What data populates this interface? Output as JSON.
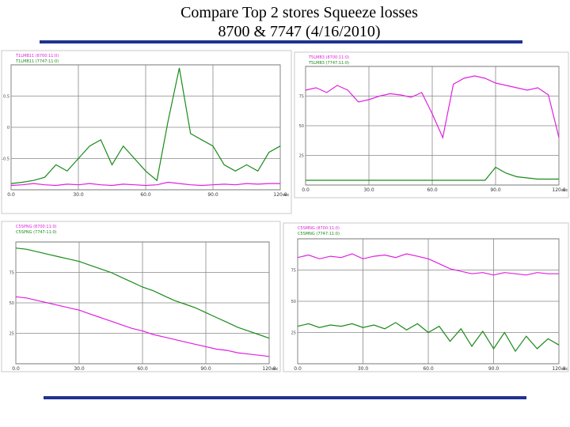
{
  "title": "Compare Top 2 stores Squeeze losses",
  "subtitle": "8700  & 7747 (4/16/2010)",
  "chart_data": [
    {
      "type": "line",
      "x_label": "sec",
      "x": [
        0,
        5,
        10,
        15,
        20,
        25,
        30,
        35,
        40,
        45,
        50,
        55,
        60,
        65,
        70,
        75,
        80,
        85,
        90,
        95,
        100,
        105,
        110,
        115,
        120
      ],
      "xlim": [
        0,
        120
      ],
      "xticks": [
        {
          "value": 0,
          "label": "0.0"
        },
        {
          "value": 30,
          "label": "30.0"
        },
        {
          "value": 60,
          "label": "60.0"
        },
        {
          "value": 90,
          "label": "90.0"
        },
        {
          "value": 120,
          "label": "120.0"
        }
      ],
      "ylim": [
        -1,
        1
      ],
      "yticks": [
        -0.5,
        0,
        0.5
      ],
      "grid": true,
      "series": [
        {
          "name": "T1LMB11 (8700:11:0)",
          "color": "#e020e0",
          "values": [
            -0.93,
            -0.92,
            -0.9,
            -0.92,
            -0.93,
            -0.91,
            -0.92,
            -0.9,
            -0.92,
            -0.93,
            -0.91,
            -0.92,
            -0.93,
            -0.92,
            -0.88,
            -0.9,
            -0.92,
            -0.93,
            -0.92,
            -0.91,
            -0.92,
            -0.9,
            -0.91,
            -0.9,
            -0.9
          ]
        },
        {
          "name": "T1LMB11 (7747:11:0)",
          "color": "#1a8a1a",
          "values": [
            -0.9,
            -0.88,
            -0.85,
            -0.8,
            -0.6,
            -0.7,
            -0.5,
            -0.3,
            -0.2,
            -0.6,
            -0.3,
            -0.5,
            -0.7,
            -0.85,
            0.1,
            0.95,
            -0.1,
            -0.2,
            -0.3,
            -0.6,
            -0.7,
            -0.6,
            -0.7,
            -0.4,
            -0.3
          ]
        }
      ]
    },
    {
      "type": "line",
      "x_label": "sec",
      "x": [
        0,
        5,
        10,
        15,
        20,
        25,
        30,
        35,
        40,
        45,
        50,
        55,
        60,
        65,
        70,
        75,
        80,
        85,
        90,
        95,
        100,
        105,
        110,
        115,
        120
      ],
      "xlim": [
        0,
        120
      ],
      "xticks": [
        {
          "value": 0,
          "label": "0.0"
        },
        {
          "value": 30,
          "label": "30.0"
        },
        {
          "value": 60,
          "label": "60.0"
        },
        {
          "value": 90,
          "label": "90.0"
        },
        {
          "value": 120,
          "label": "120.0"
        }
      ],
      "ylim": [
        0,
        100
      ],
      "yticks": [
        25,
        50,
        75
      ],
      "grid": true,
      "series": [
        {
          "name": "T5LMB3 (8700:11:0)",
          "color": "#e020e0",
          "values": [
            80,
            82,
            78,
            84,
            80,
            70,
            72,
            75,
            77,
            76,
            74,
            78,
            60,
            40,
            85,
            90,
            92,
            90,
            86,
            84,
            82,
            80,
            82,
            76,
            40
          ]
        },
        {
          "name": "T5LMB3 (7747:11:0)",
          "color": "#1a8a1a",
          "values": [
            4,
            4,
            4,
            4,
            4,
            4,
            4,
            4,
            4,
            4,
            4,
            4,
            4,
            4,
            4,
            4,
            4,
            4,
            15,
            10,
            7,
            6,
            5,
            5,
            5
          ]
        }
      ]
    },
    {
      "type": "line",
      "x_label": "sec",
      "x": [
        0,
        5,
        10,
        15,
        20,
        25,
        30,
        35,
        40,
        45,
        50,
        55,
        60,
        65,
        70,
        75,
        80,
        85,
        90,
        95,
        100,
        105,
        110,
        115,
        120
      ],
      "xlim": [
        0,
        120
      ],
      "xticks": [
        {
          "value": 0,
          "label": "0.0"
        },
        {
          "value": 30,
          "label": "30.0"
        },
        {
          "value": 60,
          "label": "60.0"
        },
        {
          "value": 90,
          "label": "90.0"
        },
        {
          "value": 120,
          "label": "120.0"
        }
      ],
      "ylim": [
        0,
        100
      ],
      "yticks": [
        25,
        50,
        75
      ],
      "grid": true,
      "series": [
        {
          "name": "C5SPNG (8700:11:0)",
          "color": "#e020e0",
          "values": [
            55,
            54,
            52,
            50,
            48,
            46,
            44,
            41,
            38,
            35,
            32,
            29,
            27,
            24,
            22,
            20,
            18,
            16,
            14,
            12,
            11,
            9,
            8,
            7,
            6
          ]
        },
        {
          "name": "C5SPNG (7747:11:0)",
          "color": "#1a8a1a",
          "values": [
            95,
            94,
            92,
            90,
            88,
            86,
            84,
            81,
            78,
            75,
            71,
            67,
            63,
            60,
            56,
            52,
            49,
            46,
            42,
            38,
            34,
            30,
            27,
            24,
            21
          ]
        }
      ]
    },
    {
      "type": "line",
      "x_label": "sec",
      "x": [
        0,
        5,
        10,
        15,
        20,
        25,
        30,
        35,
        40,
        45,
        50,
        55,
        60,
        65,
        70,
        75,
        80,
        85,
        90,
        95,
        100,
        105,
        110,
        115,
        120
      ],
      "xlim": [
        0,
        120
      ],
      "xticks": [
        {
          "value": 0,
          "label": "0.0"
        },
        {
          "value": 30,
          "label": "30.0"
        },
        {
          "value": 60,
          "label": "60.0"
        },
        {
          "value": 90,
          "label": "90.0"
        },
        {
          "value": 120,
          "label": "120.0"
        }
      ],
      "ylim": [
        0,
        100
      ],
      "yticks": [
        25,
        50,
        75
      ],
      "grid": true,
      "series": [
        {
          "name": "C5SMNG (8700:11:0)",
          "color": "#e020e0",
          "values": [
            85,
            87,
            84,
            86,
            85,
            88,
            84,
            86,
            87,
            85,
            88,
            86,
            84,
            80,
            76,
            74,
            72,
            73,
            71,
            73,
            72,
            71,
            73,
            72,
            72
          ]
        },
        {
          "name": "C5SMNG (7747:11:0)",
          "color": "#1a8a1a",
          "values": [
            30,
            32,
            29,
            31,
            30,
            32,
            29,
            31,
            28,
            33,
            27,
            32,
            25,
            30,
            18,
            28,
            14,
            26,
            12,
            25,
            10,
            22,
            12,
            20,
            15
          ]
        }
      ]
    }
  ]
}
